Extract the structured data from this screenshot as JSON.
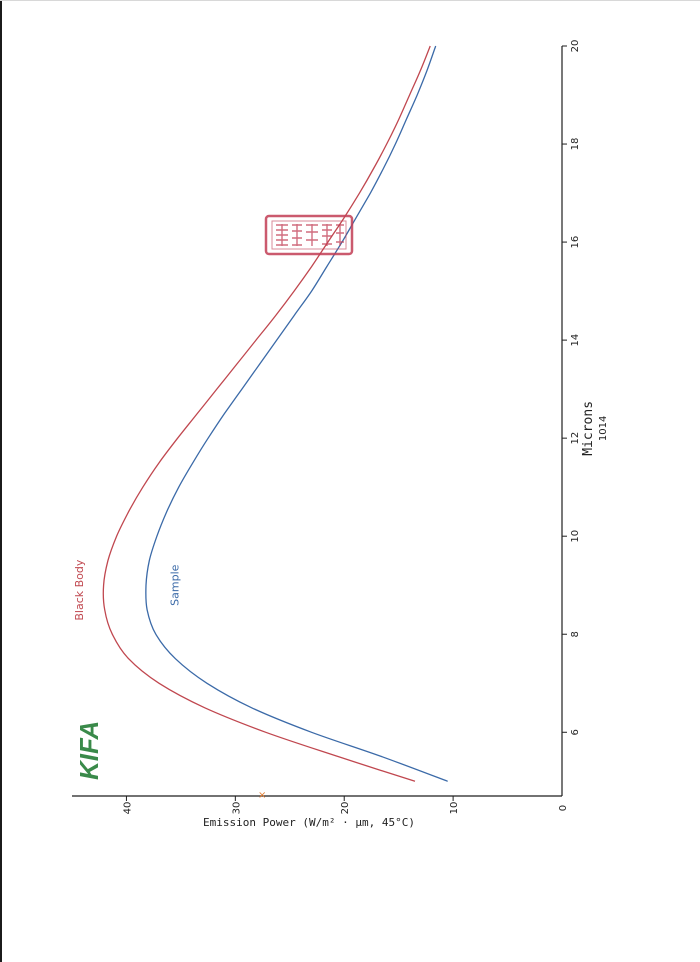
{
  "page": {
    "logo": "KIFA",
    "code": "1014"
  },
  "chart_data": {
    "type": "line",
    "xlabel": "Microns",
    "ylabel": "Emission Power (W/m² · μm, 45°C)",
    "xlim": [
      4.7,
      20
    ],
    "ylim": [
      0,
      45
    ],
    "x_ticks": [
      "6",
      "8",
      "10",
      "12",
      "14",
      "16",
      "18",
      "20"
    ],
    "x_tick_values": [
      6,
      8,
      10,
      12,
      14,
      16,
      18,
      20
    ],
    "y_ticks": [
      "0",
      "10",
      "20",
      "30",
      "40"
    ],
    "y_tick_values": [
      0,
      10,
      20,
      30,
      40
    ],
    "grid": false,
    "series": [
      {
        "name": "Black Body",
        "color": "#c0474f",
        "x": [
          5.0,
          5.5,
          6.0,
          6.5,
          7.0,
          7.5,
          8.0,
          8.5,
          9.0,
          9.5,
          10.0,
          10.5,
          11.0,
          11.5,
          12.0,
          12.5,
          13.0,
          13.5,
          14.0,
          14.5,
          15.0,
          15.5,
          16.0,
          16.5,
          17.0,
          17.5,
          18.0,
          18.5,
          19.0,
          19.5,
          20.0
        ],
        "values": [
          13.5,
          20.5,
          27.2,
          32.8,
          37.0,
          39.8,
          41.3,
          42.0,
          42.1,
          41.7,
          40.9,
          39.8,
          38.5,
          37.0,
          35.3,
          33.5,
          31.7,
          29.9,
          28.1,
          26.3,
          24.6,
          23.0,
          21.5,
          20.0,
          18.6,
          17.3,
          16.1,
          15.0,
          14.0,
          13.0,
          12.1
        ]
      },
      {
        "name": "Sample",
        "color": "#3b6aa8",
        "x": [
          5.0,
          5.5,
          6.0,
          6.5,
          7.0,
          7.5,
          8.0,
          8.5,
          9.0,
          9.5,
          10.0,
          10.5,
          11.0,
          11.5,
          12.0,
          12.5,
          13.0,
          13.5,
          14.0,
          14.5,
          15.0,
          15.5,
          16.0,
          16.5,
          17.0,
          17.5,
          18.0,
          18.5,
          19.0,
          19.5,
          20.0
        ],
        "values": [
          10.5,
          16.5,
          23.0,
          28.5,
          32.6,
          35.5,
          37.3,
          38.1,
          38.2,
          37.9,
          37.2,
          36.3,
          35.2,
          33.9,
          32.5,
          31.0,
          29.4,
          27.8,
          26.2,
          24.6,
          23.0,
          21.6,
          20.2,
          18.9,
          17.6,
          16.4,
          15.3,
          14.3,
          13.3,
          12.4,
          11.6
        ]
      }
    ]
  }
}
